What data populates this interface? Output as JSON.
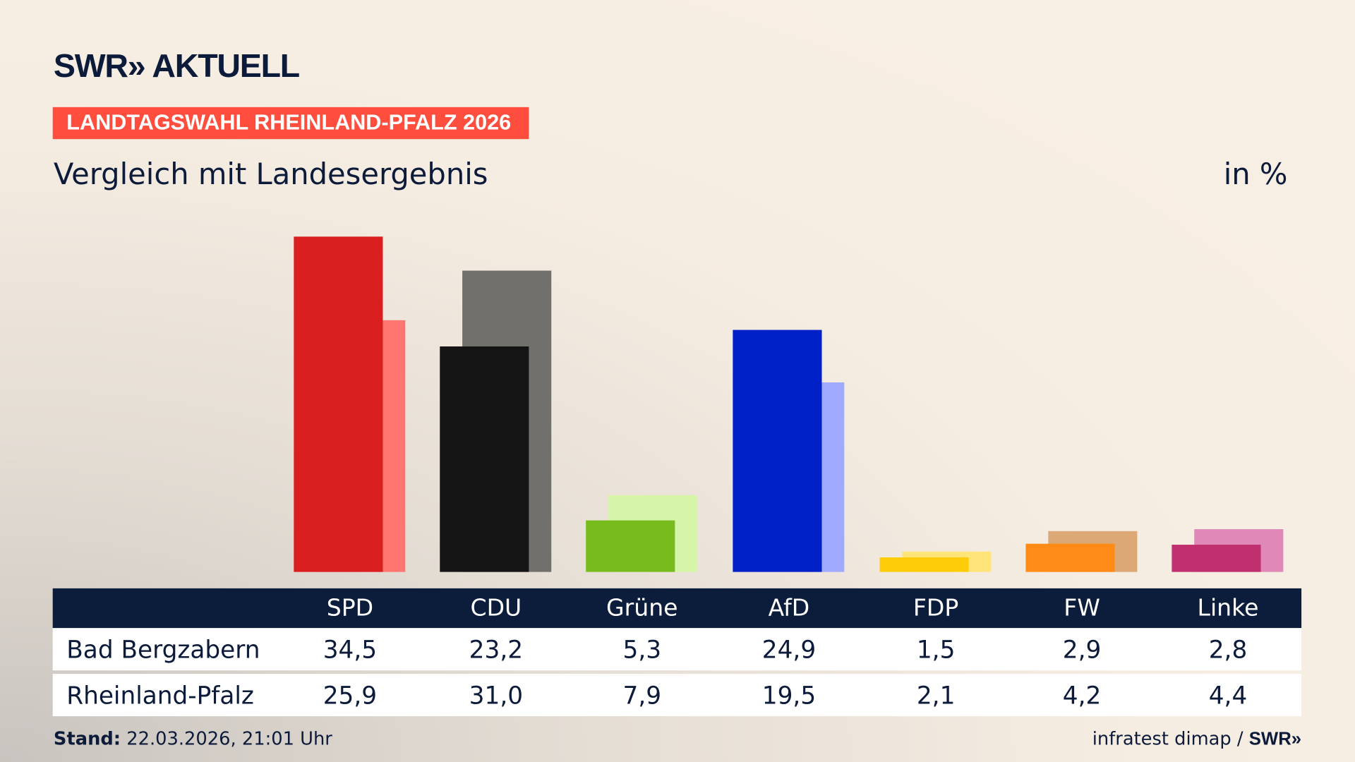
{
  "header": {
    "logo": "SWR» AKTUELL",
    "badge": "LANDTAGSWAHL RHEINLAND-PFALZ 2026",
    "subtitle": "Vergleich mit Landesergebnis",
    "unit": "in %"
  },
  "chart_data": {
    "type": "bar",
    "categories": [
      "SPD",
      "CDU",
      "Grüne",
      "AfD",
      "FDP",
      "FW",
      "Linke"
    ],
    "series": [
      {
        "name": "Bad Bergzabern",
        "values": [
          "34,5",
          "23,2",
          "5,3",
          "24,9",
          "1,5",
          "2,9",
          "2,8"
        ],
        "colors": [
          "#d91f1f",
          "#141414",
          "#77bb1d",
          "#0020c8",
          "#ffcc0a",
          "#ff8a16",
          "#c0306e"
        ]
      },
      {
        "name": "Rheinland-Pfalz",
        "values": [
          "25,9",
          "31,0",
          "7,9",
          "19,5",
          "2,1",
          "4,2",
          "4,4"
        ],
        "colors": [
          "#ff7670",
          "#72706c",
          "#d6f5a8",
          "#a0aaff",
          "#ffe47a",
          "#dca876",
          "#e088b8"
        ]
      }
    ],
    "ylim": [
      0,
      36
    ]
  },
  "footer": {
    "stand_label": "Stand:",
    "stand_value": "22.03.2026, 21:01 Uhr",
    "source": "infratest dimap /",
    "source_logo": "SWR»"
  }
}
